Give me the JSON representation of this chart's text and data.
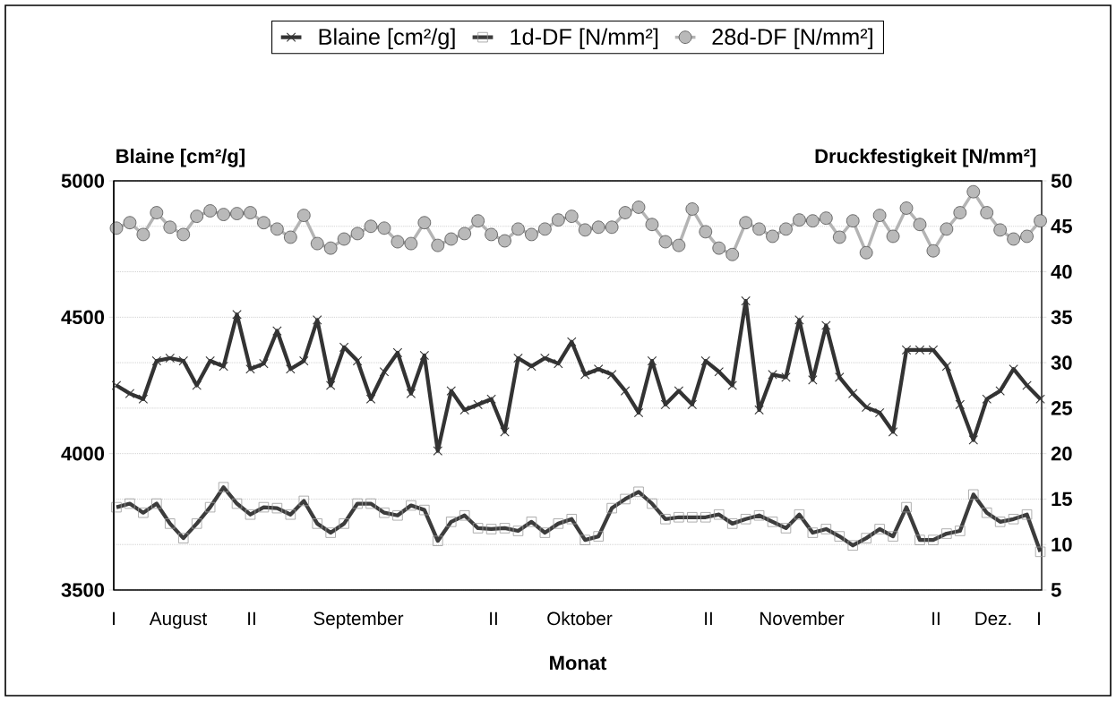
{
  "chart_data": {
    "type": "line",
    "xlabel": "Monat",
    "ylabel": "Blaine [cm²/g]",
    "y2label": "Druckfestigkeit [N/mm²]",
    "categories": [
      null,
      null,
      null,
      null,
      null,
      null,
      null,
      null,
      null,
      null,
      null,
      null,
      null,
      null,
      null,
      null,
      null,
      null,
      null,
      null,
      null,
      null,
      null,
      null,
      null,
      null,
      null,
      null,
      null,
      null,
      null,
      null,
      null,
      null,
      null,
      null,
      null,
      null,
      null,
      null,
      null,
      null,
      null,
      null,
      null,
      null,
      null,
      null,
      null,
      null,
      null,
      null,
      null,
      null,
      null,
      null,
      null,
      null,
      null,
      null,
      null,
      null,
      null,
      null,
      null,
      null,
      null,
      null,
      null,
      null
    ],
    "series": [
      {
        "name": "Blaine [cm²/g]",
        "color": "#333333",
        "marker": "cross",
        "values": [
          4250,
          4220,
          4200,
          4340,
          4350,
          4340,
          4250,
          4340,
          4320,
          4510,
          4310,
          4330,
          4450,
          4310,
          4340,
          4490,
          4250,
          4390,
          4340,
          4200,
          4300,
          4370,
          4220,
          4360,
          4010,
          4230,
          4160,
          4180,
          4200,
          4080,
          4350,
          4320,
          4350,
          4330,
          4410,
          4290,
          4310,
          4290,
          4230,
          4150,
          4340,
          4180,
          4230,
          4180,
          4340,
          4300,
          4250,
          4560,
          4160,
          4290,
          4280,
          4490,
          4270,
          4470,
          4280,
          4220,
          4170,
          4150,
          4080,
          4380,
          4380,
          4380,
          4320,
          4180,
          4050,
          4200,
          4230,
          4310,
          4250,
          4200
        ]
      },
      {
        "name": "1d-DF [N/mm²]",
        "color": "#3c3c3c",
        "marker": "square",
        "axis": "y2",
        "values": [
          14.1,
          14.5,
          13.5,
          14.5,
          12.3,
          10.7,
          12.3,
          14.1,
          16.3,
          14.5,
          13.3,
          14.1,
          14.0,
          13.3,
          14.8,
          12.3,
          11.3,
          12.3,
          14.5,
          14.5,
          13.5,
          13.2,
          14.3,
          13.8,
          10.4,
          12.5,
          13.2,
          11.8,
          11.7,
          11.8,
          11.5,
          12.5,
          11.3,
          12.3,
          12.8,
          10.5,
          10.9,
          14.0,
          15.0,
          15.8,
          14.5,
          12.8,
          13.0,
          13.0,
          13.0,
          13.3,
          12.3,
          12.8,
          13.2,
          12.5,
          11.8,
          13.3,
          11.3,
          11.7,
          10.9,
          9.9,
          10.7,
          11.7,
          10.9,
          14.1,
          10.5,
          10.5,
          11.2,
          11.5,
          15.5,
          13.5,
          12.5,
          12.8,
          13.3,
          9.2
        ]
      },
      {
        "name": "28d-DF [N/mm²]",
        "color": "#b4b4b4",
        "marker": "circle",
        "axis": "y2",
        "values": [
          44.8,
          45.4,
          44.1,
          46.5,
          44.9,
          44.1,
          46.1,
          46.7,
          46.3,
          46.4,
          46.5,
          45.4,
          44.7,
          43.8,
          46.2,
          43.1,
          42.6,
          43.6,
          44.2,
          45.0,
          44.8,
          43.3,
          43.1,
          45.4,
          42.9,
          43.6,
          44.2,
          45.6,
          44.1,
          43.4,
          44.7,
          44.1,
          44.7,
          45.7,
          46.1,
          44.6,
          44.9,
          44.9,
          46.5,
          47.1,
          45.2,
          43.3,
          42.9,
          46.9,
          44.4,
          42.6,
          41.9,
          45.4,
          44.7,
          43.9,
          44.7,
          45.7,
          45.6,
          45.9,
          43.8,
          45.6,
          42.1,
          46.2,
          43.9,
          47.0,
          45.2,
          42.3,
          44.7,
          46.5,
          48.8,
          46.5,
          44.6,
          43.6,
          43.9,
          45.6
        ]
      }
    ],
    "ylim": [
      3500,
      5000
    ],
    "yticks": [
      3500,
      4000,
      4500,
      5000
    ],
    "y2lim": [
      5,
      50
    ],
    "y2ticks": [
      5,
      10,
      15,
      20,
      25,
      30,
      35,
      40,
      45,
      50
    ],
    "grid": "y",
    "legend": "top",
    "annotations": [
      "I",
      "August",
      "II",
      "September",
      "II",
      "Oktober",
      "II",
      "November",
      "II",
      "Dez.",
      "I"
    ]
  }
}
